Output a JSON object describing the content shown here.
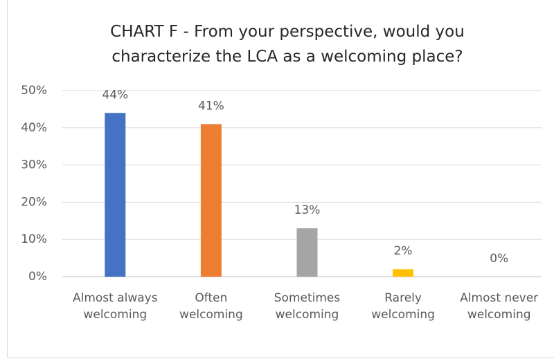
{
  "chart_data": {
    "type": "bar",
    "title": "CHART F - From your perspective, would you characterize the LCA as a welcoming place?",
    "categories": [
      "Almost always welcoming",
      "Often welcoming",
      "Sometimes welcoming",
      "Rarely welcoming",
      "Almost never welcoming"
    ],
    "values": [
      44,
      41,
      13,
      2,
      0
    ],
    "value_labels": [
      "44%",
      "41%",
      "13%",
      "2%",
      "0%"
    ],
    "colors": [
      "#4472c4",
      "#ed7d31",
      "#a5a5a5",
      "#ffc000",
      "#5b9bd5"
    ],
    "ylim": [
      0,
      50
    ],
    "yticks": [
      {
        "value": 0,
        "label": "0%"
      },
      {
        "value": 10,
        "label": "10%"
      },
      {
        "value": 20,
        "label": "20%"
      },
      {
        "value": 30,
        "label": "30%"
      },
      {
        "value": 40,
        "label": "40%"
      },
      {
        "value": 50,
        "label": "50%"
      }
    ],
    "grid": true
  }
}
